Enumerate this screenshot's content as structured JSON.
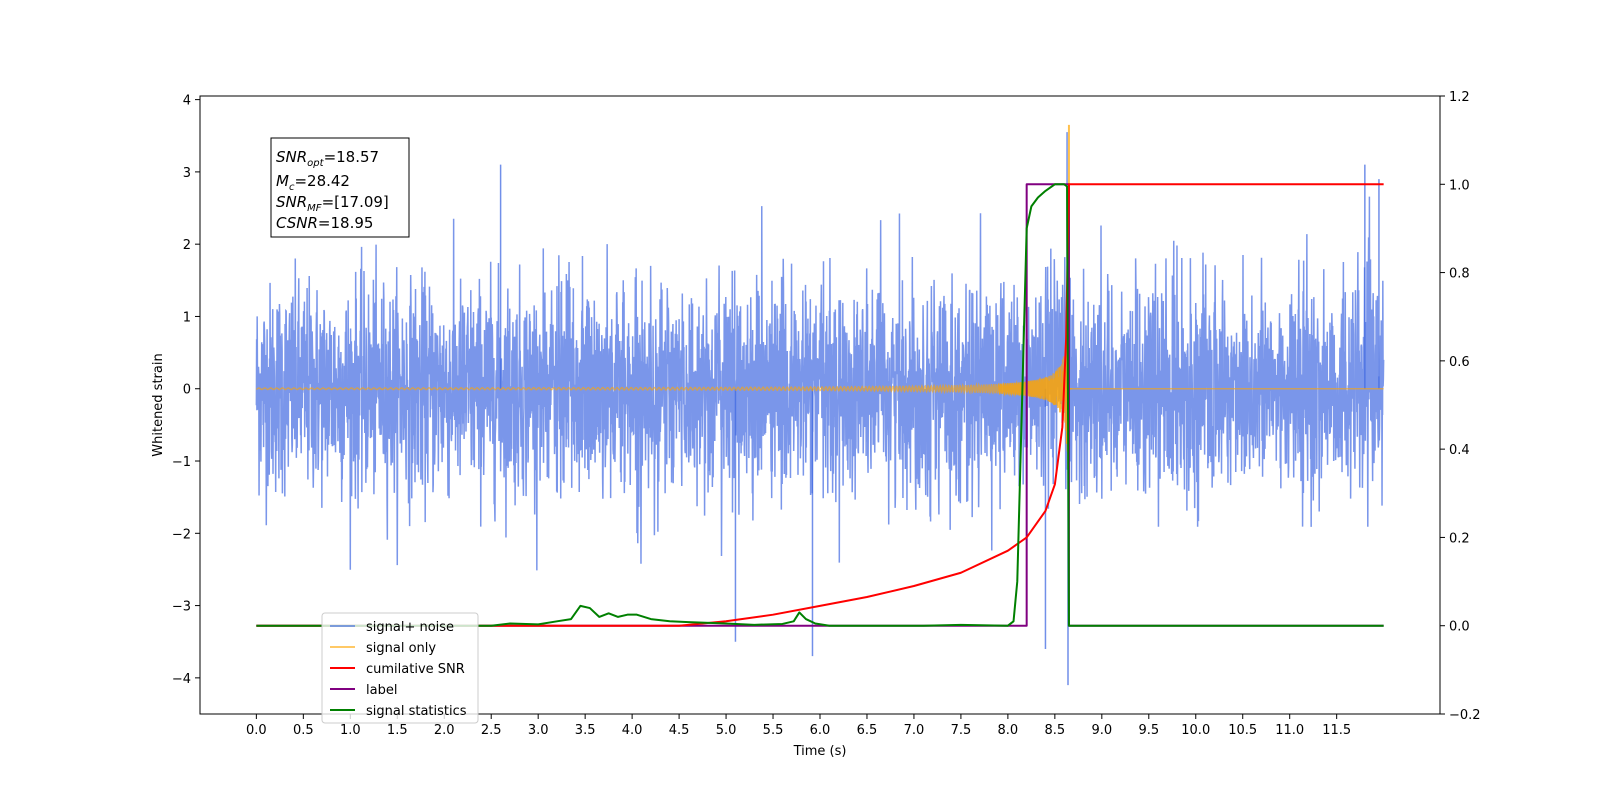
{
  "chart_data": {
    "type": "line",
    "title": "",
    "xlabel": "Time (s)",
    "ylabel_left": "Whitened strain",
    "ylabel_right": "",
    "xlim": [
      -0.6,
      12.6
    ],
    "ylim_left": [
      -4.5,
      4.05
    ],
    "ylim_right": [
      -0.2,
      1.2
    ],
    "x_ticks": [
      "0.0",
      "0.5",
      "1.0",
      "1.5",
      "2.0",
      "2.5",
      "3.0",
      "3.5",
      "4.0",
      "4.5",
      "5.0",
      "5.5",
      "6.0",
      "6.5",
      "7.0",
      "7.5",
      "8.0",
      "8.5",
      "9.0",
      "9.5",
      "10.0",
      "10.5",
      "11.0",
      "11.5"
    ],
    "y_ticks_left": [
      "4",
      "3",
      "2",
      "1",
      "0",
      "−1",
      "−2",
      "−3",
      "−4"
    ],
    "y_ticks_right": [
      "1.2",
      "1.0",
      "0.8",
      "0.6",
      "0.4",
      "0.2",
      "0.0",
      "−0.2"
    ],
    "grid": false,
    "legend_position": "lower-left",
    "annotation": {
      "snr_opt": {
        "base": "SNR",
        "sub": "opt",
        "value": "=18.57"
      },
      "mc": {
        "base": "M",
        "sub": "c",
        "value": "=28.42"
      },
      "snr_mf": {
        "base": "SNR",
        "sub": "MF",
        "value": "=[17.09]"
      },
      "csnr": {
        "base": "CSNR",
        "sub": "",
        "value": "=18.95"
      }
    },
    "series": [
      {
        "name": "signal+ noise",
        "axis": "left",
        "color": "#4169e1",
        "description_of_shape": "whitened noise, mostly within ±2, spikes to about ±3",
        "x_range": [
          0.0,
          12.0
        ],
        "approx_envelope": 2.0,
        "peaks": [
          {
            "x": 2.6,
            "y": 3.1
          },
          {
            "x": 5.1,
            "y": -3.5
          },
          {
            "x": 5.92,
            "y": -3.7
          },
          {
            "x": 8.4,
            "y": -3.6
          },
          {
            "x": 8.63,
            "y": 3.55
          },
          {
            "x": 8.64,
            "y": -4.1
          },
          {
            "x": 11.8,
            "y": 3.1
          },
          {
            "x": 11.95,
            "y": 2.9
          }
        ]
      },
      {
        "name": "signal only",
        "axis": "left",
        "color": "#ffa500",
        "description_of_shape": "chirp waveform growing in amplitude, merging near 8.65 s",
        "merger_time": 8.65,
        "peak_amplitude": 3.65
      },
      {
        "name": "cumilative SNR",
        "axis": "right",
        "color": "#ff0000",
        "points": [
          [
            0.0,
            0.0
          ],
          [
            4.5,
            0.0
          ],
          [
            5.0,
            0.01
          ],
          [
            5.5,
            0.025
          ],
          [
            6.0,
            0.045
          ],
          [
            6.5,
            0.065
          ],
          [
            7.0,
            0.09
          ],
          [
            7.5,
            0.12
          ],
          [
            8.0,
            0.17
          ],
          [
            8.2,
            0.2
          ],
          [
            8.4,
            0.26
          ],
          [
            8.5,
            0.32
          ],
          [
            8.58,
            0.45
          ],
          [
            8.62,
            0.65
          ],
          [
            8.65,
            1.0
          ],
          [
            12.0,
            1.0
          ]
        ]
      },
      {
        "name": "label",
        "axis": "right",
        "color": "#800080",
        "points": [
          [
            0.0,
            0.0
          ],
          [
            8.2,
            0.0
          ],
          [
            8.2,
            1.0
          ],
          [
            8.65,
            1.0
          ],
          [
            8.65,
            0.0
          ],
          [
            12.0,
            0.0
          ]
        ]
      },
      {
        "name": "signal statistics",
        "axis": "right",
        "color": "#008000",
        "points": [
          [
            0.0,
            0.0
          ],
          [
            2.5,
            0.0
          ],
          [
            2.7,
            0.005
          ],
          [
            3.0,
            0.003
          ],
          [
            3.2,
            0.01
          ],
          [
            3.35,
            0.015
          ],
          [
            3.45,
            0.045
          ],
          [
            3.55,
            0.04
          ],
          [
            3.65,
            0.02
          ],
          [
            3.75,
            0.028
          ],
          [
            3.85,
            0.02
          ],
          [
            3.95,
            0.025
          ],
          [
            4.05,
            0.025
          ],
          [
            4.2,
            0.015
          ],
          [
            4.4,
            0.01
          ],
          [
            4.6,
            0.008
          ],
          [
            5.0,
            0.005
          ],
          [
            5.3,
            0.002
          ],
          [
            5.6,
            0.004
          ],
          [
            5.72,
            0.01
          ],
          [
            5.78,
            0.03
          ],
          [
            5.85,
            0.015
          ],
          [
            5.95,
            0.005
          ],
          [
            6.1,
            0.0
          ],
          [
            7.1,
            0.0
          ],
          [
            7.5,
            0.002
          ],
          [
            8.0,
            0.0
          ],
          [
            8.06,
            0.01
          ],
          [
            8.1,
            0.1
          ],
          [
            8.15,
            0.5
          ],
          [
            8.2,
            0.9
          ],
          [
            8.25,
            0.95
          ],
          [
            8.32,
            0.97
          ],
          [
            8.4,
            0.985
          ],
          [
            8.5,
            1.0
          ],
          [
            8.6,
            1.0
          ],
          [
            8.63,
            0.995
          ],
          [
            8.65,
            0.0
          ],
          [
            12.0,
            0.0
          ]
        ]
      }
    ],
    "legend": [
      {
        "label": "signal+ noise",
        "color": "#4169e1"
      },
      {
        "label": "signal only",
        "color": "#ffa500"
      },
      {
        "label": "cumilative SNR",
        "color": "#ff0000"
      },
      {
        "label": "label",
        "color": "#800080"
      },
      {
        "label": "signal statistics",
        "color": "#008000"
      }
    ]
  }
}
